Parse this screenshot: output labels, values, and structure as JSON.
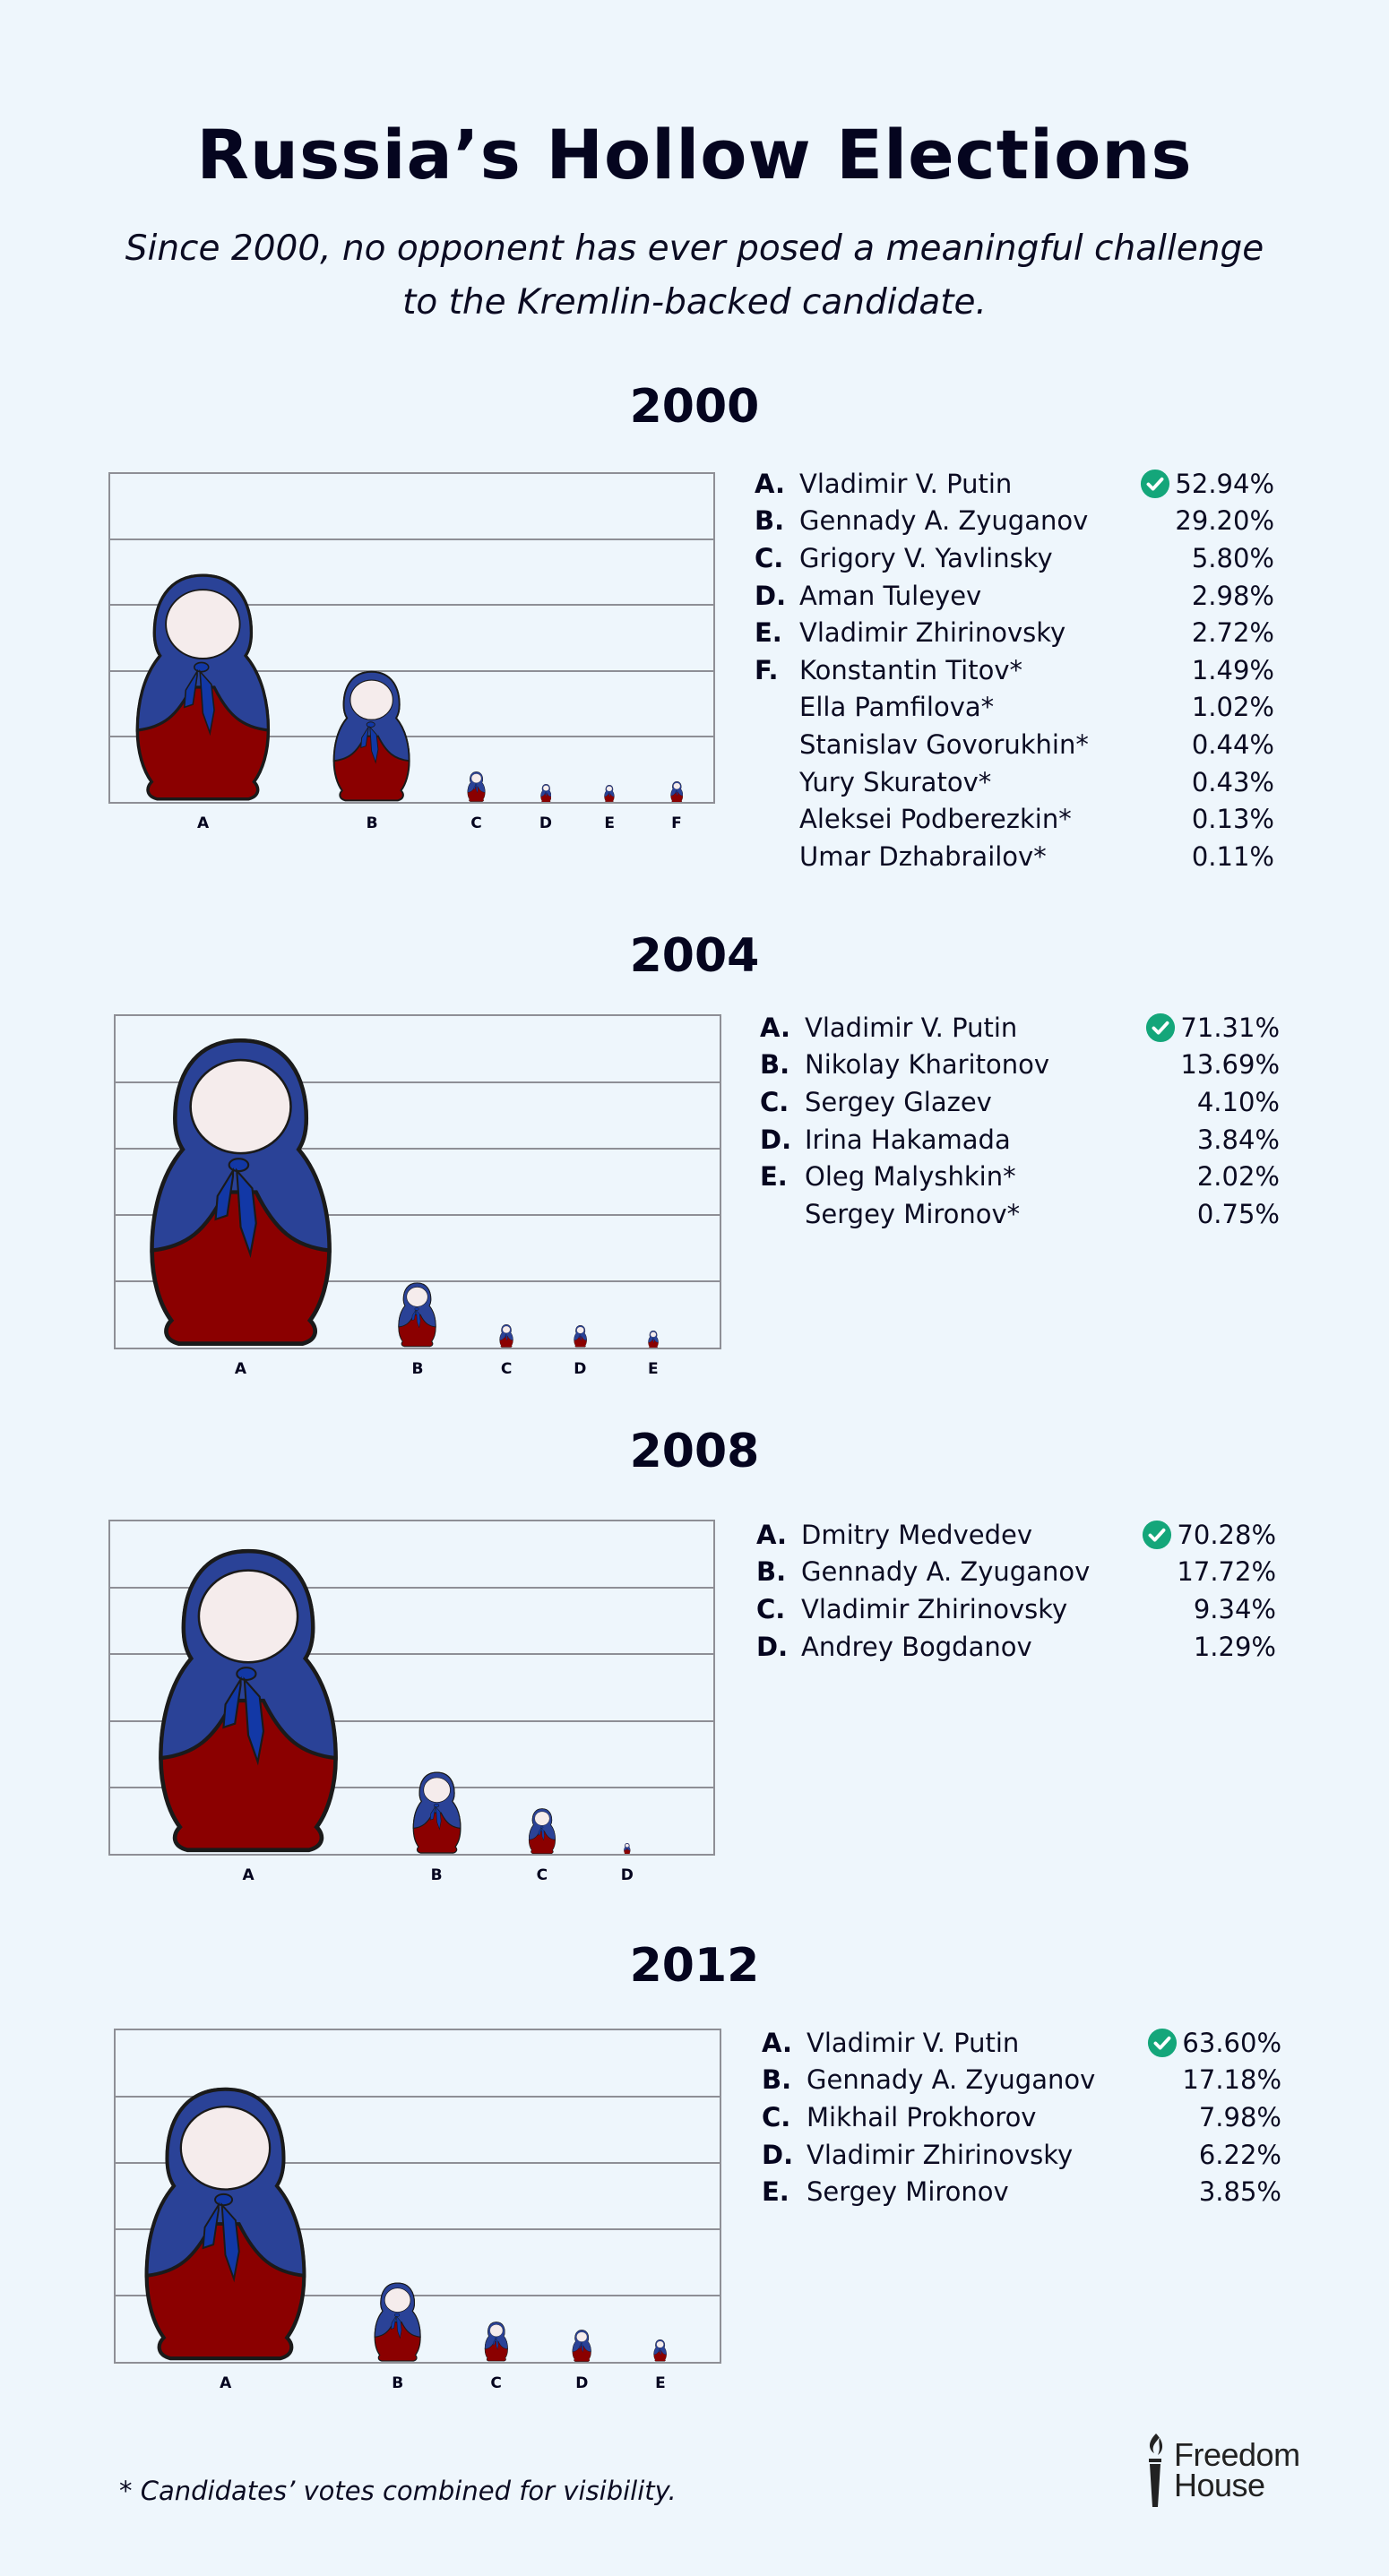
{
  "header": {
    "title": "Russia’s Hollow Elections",
    "subtitle_line1": "Since 2000, no opponent has ever posed a meaningful challenge",
    "subtitle_line2": "to the Kremlin-backed candidate."
  },
  "colors": {
    "background": "#eef6fc",
    "doll_blue": "#2a4297",
    "doll_red": "#8b0000",
    "scarf_blue": "#1238a6",
    "face": "#f5ecec",
    "outline": "#1a1a1a",
    "grid": "#8e8f96",
    "check_green": "#14a67a"
  },
  "winner_icon": "check-circle-icon",
  "footnote": "* Candidates’ votes combined for visibility.",
  "logo": {
    "line1": "Freedom",
    "line2": "House",
    "icon": "torch-icon"
  },
  "elections": [
    {
      "year": "2000",
      "candidates": [
        {
          "letter": "A.",
          "name": "Vladimir V. Putin",
          "pct": "52.94%",
          "winner": true
        },
        {
          "letter": "B.",
          "name": "Gennady A. Zyuganov",
          "pct": "29.20%",
          "winner": false
        },
        {
          "letter": "C.",
          "name": "Grigory V. Yavlinsky",
          "pct": "5.80%",
          "winner": false
        },
        {
          "letter": "D.",
          "name": "Aman Tuleyev",
          "pct": "2.98%",
          "winner": false
        },
        {
          "letter": "E.",
          "name": "Vladimir Zhirinovsky",
          "pct": "2.72%",
          "winner": false
        },
        {
          "letter": "F.",
          "name": "Konstantin Titov*",
          "pct": "1.49%",
          "winner": false
        },
        {
          "letter": "",
          "name": "Ella Pamfilova*",
          "pct": "1.02%",
          "winner": false
        },
        {
          "letter": "",
          "name": "Stanislav Govorukhin*",
          "pct": "0.44%",
          "winner": false
        },
        {
          "letter": "",
          "name": "Yury Skuratov*",
          "pct": "0.43%",
          "winner": false
        },
        {
          "letter": "",
          "name": "Aleksei Podberezkin*",
          "pct": "0.13%",
          "winner": false
        },
        {
          "letter": "",
          "name": "Umar Dzhabrailov*",
          "pct": "0.11%",
          "winner": false
        }
      ],
      "axis_labels": [
        "A",
        "B",
        "C",
        "D",
        "E",
        "F"
      ]
    },
    {
      "year": "2004",
      "candidates": [
        {
          "letter": "A.",
          "name": "Vladimir V. Putin",
          "pct": "71.31%",
          "winner": true
        },
        {
          "letter": "B.",
          "name": "Nikolay Kharitonov",
          "pct": "13.69%",
          "winner": false
        },
        {
          "letter": "C.",
          "name": "Sergey Glazev",
          "pct": "4.10%",
          "winner": false
        },
        {
          "letter": "D.",
          "name": "Irina Hakamada",
          "pct": "3.84%",
          "winner": false
        },
        {
          "letter": "E.",
          "name": "Oleg Malyshkin*",
          "pct": "2.02%",
          "winner": false
        },
        {
          "letter": "",
          "name": "Sergey Mironov*",
          "pct": "0.75%",
          "winner": false
        }
      ],
      "axis_labels": [
        "A",
        "B",
        "C",
        "D",
        "E"
      ]
    },
    {
      "year": "2008",
      "candidates": [
        {
          "letter": "A.",
          "name": "Dmitry Medvedev",
          "pct": "70.28%",
          "winner": true
        },
        {
          "letter": "B.",
          "name": "Gennady A. Zyuganov",
          "pct": "17.72%",
          "winner": false
        },
        {
          "letter": "C.",
          "name": "Vladimir Zhirinovsky",
          "pct": "9.34%",
          "winner": false
        },
        {
          "letter": "D.",
          "name": "Andrey Bogdanov",
          "pct": "1.29%",
          "winner": false
        }
      ],
      "axis_labels": [
        "A",
        "B",
        "C",
        "D"
      ]
    },
    {
      "year": "2012",
      "candidates": [
        {
          "letter": "A.",
          "name": "Vladimir V. Putin",
          "pct": "63.60%",
          "winner": true
        },
        {
          "letter": "B.",
          "name": "Gennady A. Zyuganov",
          "pct": "17.18%",
          "winner": false
        },
        {
          "letter": "C.",
          "name": "Mikhail Prokhorov",
          "pct": "7.98%",
          "winner": false
        },
        {
          "letter": "D.",
          "name": "Vladimir Zhirinovsky",
          "pct": "6.22%",
          "winner": false
        },
        {
          "letter": "E.",
          "name": "Sergey Mironov",
          "pct": "3.85%",
          "winner": false
        }
      ],
      "axis_labels": [
        "A",
        "B",
        "C",
        "D",
        "E"
      ]
    }
  ],
  "chart_data": [
    {
      "type": "bar",
      "title": "2000",
      "categories": [
        "A",
        "B",
        "C",
        "D",
        "E",
        "F"
      ],
      "values": [
        52.94,
        29.2,
        5.8,
        2.98,
        2.72,
        3.62
      ],
      "value_note": "F combines starred candidates: 1.49 + 1.02 + 0.44 + 0.43 + 0.13 + 0.11",
      "legend": [
        "Vladimir V. Putin",
        "Gennady A. Zyuganov",
        "Grigory V. Yavlinsky",
        "Aman Tuleyev",
        "Vladimir Zhirinovsky",
        "Konstantin Titov* (combined)"
      ],
      "xlabel": "",
      "ylabel": "",
      "ylim": [
        0,
        100
      ],
      "grid": true,
      "marker": "matryoshka-doll"
    },
    {
      "type": "bar",
      "title": "2004",
      "categories": [
        "A",
        "B",
        "C",
        "D",
        "E"
      ],
      "values": [
        71.31,
        13.69,
        4.1,
        3.84,
        2.77
      ],
      "value_note": "E combines starred candidates: 2.02 + 0.75",
      "legend": [
        "Vladimir V. Putin",
        "Nikolay Kharitonov",
        "Sergey Glazev",
        "Irina Hakamada",
        "Oleg Malyshkin* (combined)"
      ],
      "xlabel": "",
      "ylabel": "",
      "ylim": [
        0,
        100
      ],
      "grid": true,
      "marker": "matryoshka-doll"
    },
    {
      "type": "bar",
      "title": "2008",
      "categories": [
        "A",
        "B",
        "C",
        "D"
      ],
      "values": [
        70.28,
        17.72,
        9.34,
        1.29
      ],
      "legend": [
        "Dmitry Medvedev",
        "Gennady A. Zyuganov",
        "Vladimir Zhirinovsky",
        "Andrey Bogdanov"
      ],
      "xlabel": "",
      "ylabel": "",
      "ylim": [
        0,
        100
      ],
      "grid": true,
      "marker": "matryoshka-doll"
    },
    {
      "type": "bar",
      "title": "2012",
      "categories": [
        "A",
        "B",
        "C",
        "D",
        "E"
      ],
      "values": [
        63.6,
        17.18,
        7.98,
        6.22,
        3.85
      ],
      "legend": [
        "Vladimir V. Putin",
        "Gennady A. Zyuganov",
        "Mikhail Prokhorov",
        "Vladimir Zhirinovsky",
        "Sergey Mironov"
      ],
      "xlabel": "",
      "ylabel": "",
      "ylim": [
        0,
        100
      ],
      "grid": true,
      "marker": "matryoshka-doll"
    }
  ]
}
